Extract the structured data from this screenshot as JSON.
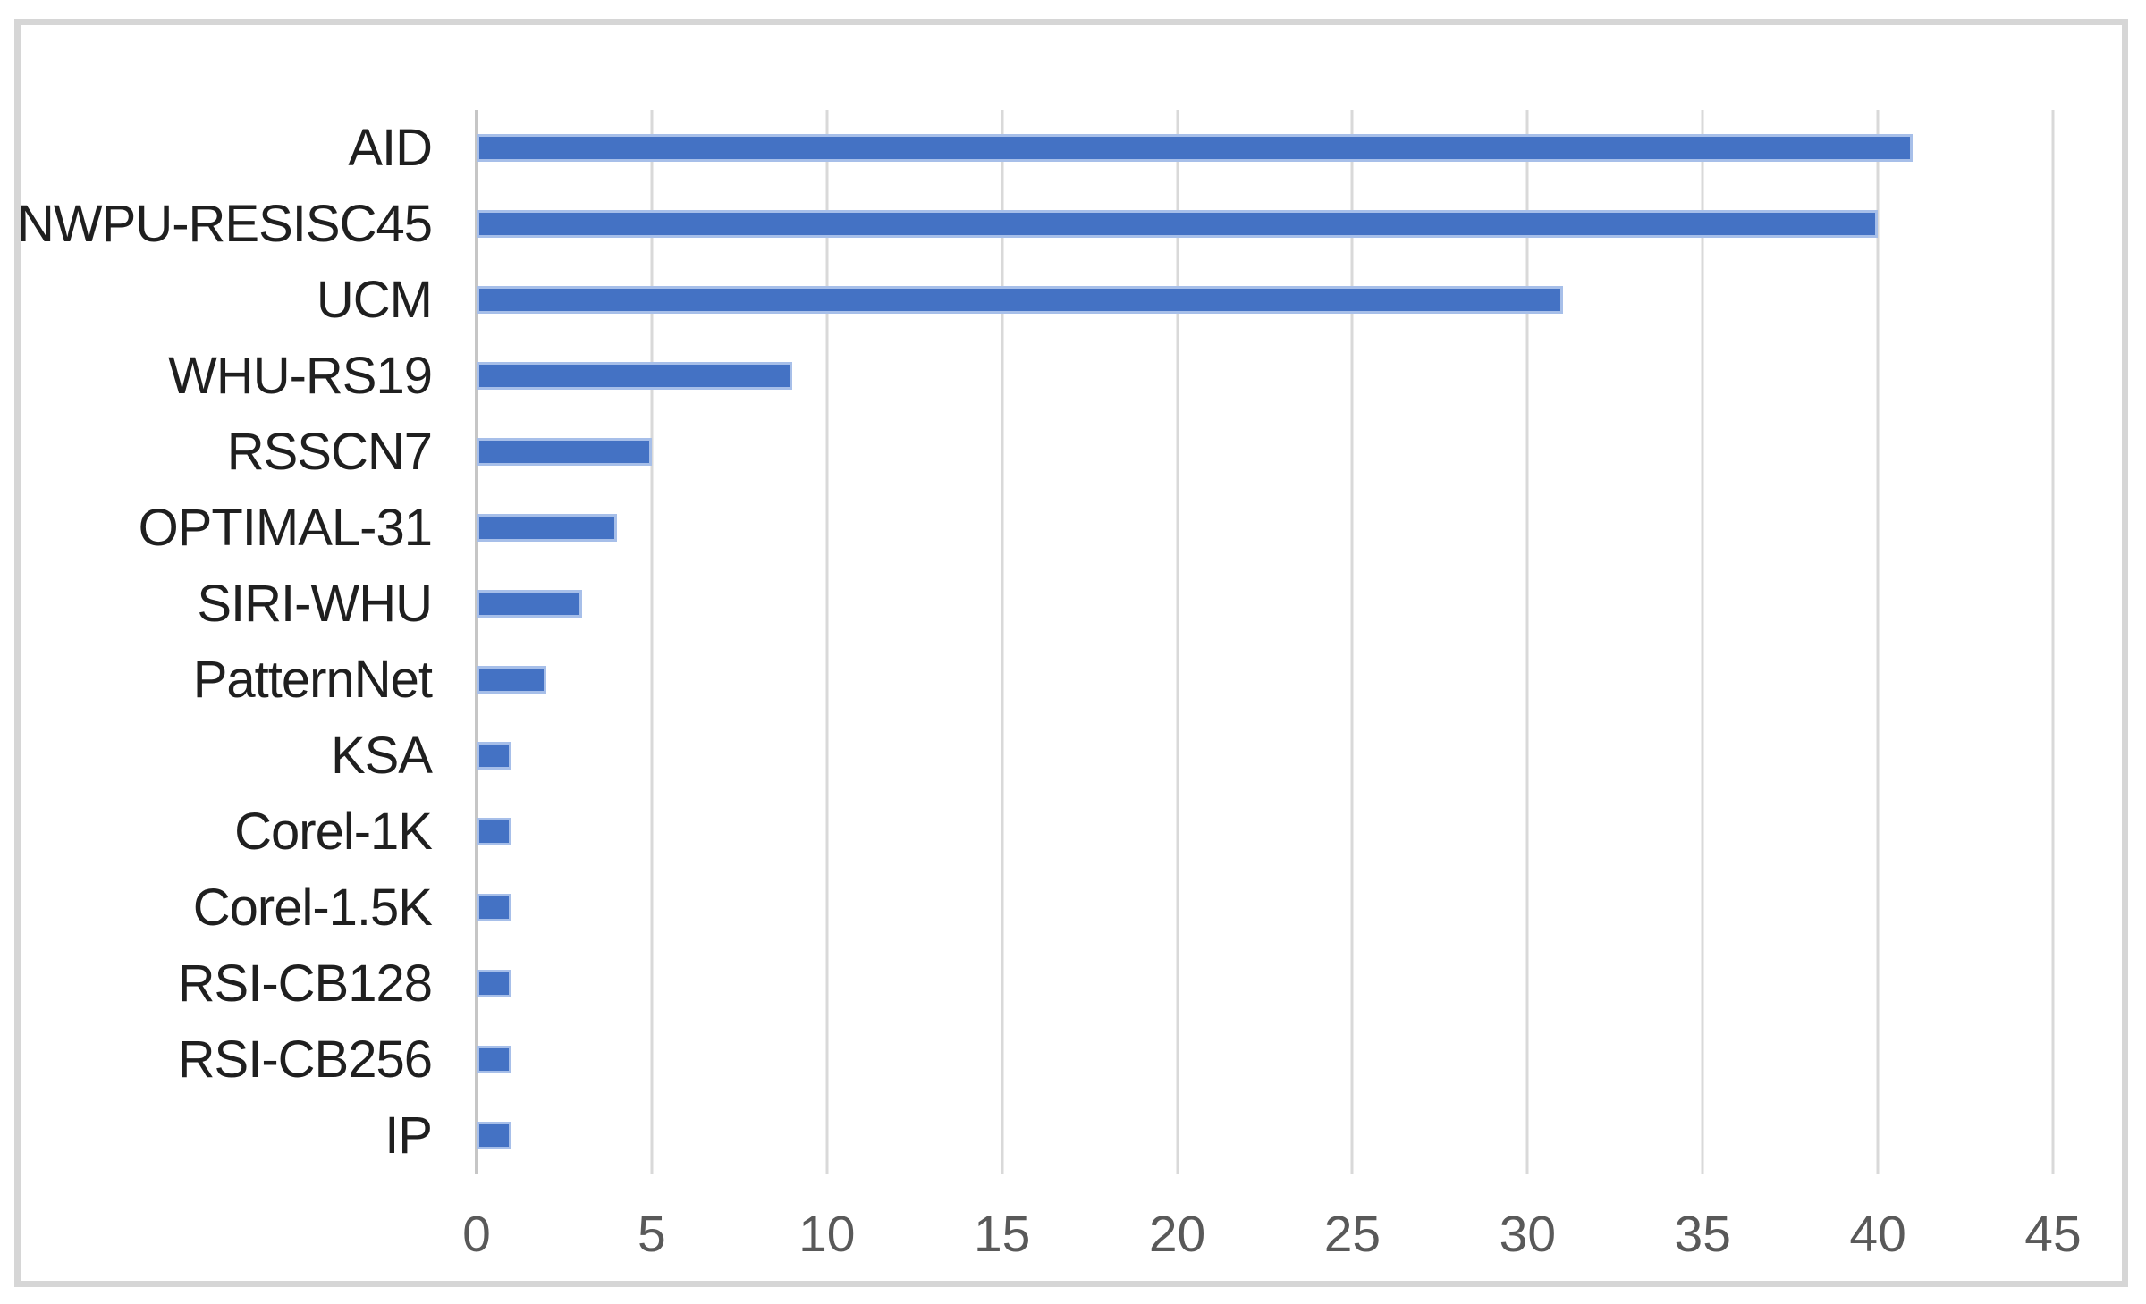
{
  "chart_data": {
    "type": "bar",
    "orientation": "horizontal",
    "title": "",
    "xlabel": "",
    "ylabel": "",
    "legend": null,
    "grid": true,
    "categories": [
      "AID",
      "NWPU-RESISC45",
      "UCM",
      "WHU-RS19",
      "RSSCN7",
      "OPTIMAL-31",
      "SIRI-WHU",
      "PatternNet",
      "KSA",
      "Corel-1K",
      "Corel-1.5K",
      "RSI-CB128",
      "RSI-CB256",
      "IP"
    ],
    "values": [
      41,
      40,
      31,
      9,
      5,
      4,
      3,
      2,
      1,
      1,
      1,
      1,
      1,
      1
    ],
    "xlim": [
      0,
      45
    ],
    "x_ticks": [
      0,
      5,
      10,
      15,
      20,
      25,
      30,
      35,
      40,
      45
    ]
  },
  "colors": {
    "bar_fill": "#4472C4",
    "bar_halo": "#A7BFE9",
    "gridline": "#D9D9D9",
    "axis_line": "#C6C6C6",
    "tick_text": "#595959",
    "label_text": "#1F1F1F",
    "frame_border": "#D6D6D6",
    "background": "#FFFFFF"
  }
}
